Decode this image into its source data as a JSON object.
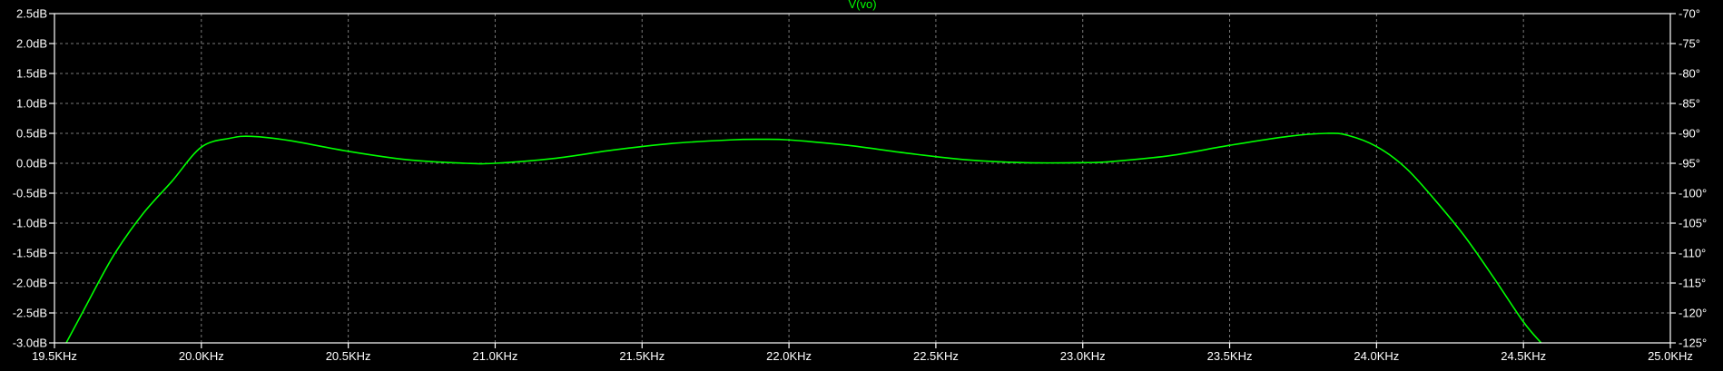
{
  "chart_data": {
    "type": "line",
    "title": "V(vo)",
    "xlabel": "",
    "ylabel": "",
    "x_range_hz": [
      19500,
      25000
    ],
    "y_range_db": [
      -3.0,
      2.5
    ],
    "y2_range_deg": [
      -125,
      -70
    ],
    "x_ticks": [
      {
        "value": 19500,
        "label": "19.5KHz"
      },
      {
        "value": 20000,
        "label": "20.0KHz"
      },
      {
        "value": 20500,
        "label": "20.5KHz"
      },
      {
        "value": 21000,
        "label": "21.0KHz"
      },
      {
        "value": 21500,
        "label": "21.5KHz"
      },
      {
        "value": 22000,
        "label": "22.0KHz"
      },
      {
        "value": 22500,
        "label": "22.5KHz"
      },
      {
        "value": 23000,
        "label": "23.0KHz"
      },
      {
        "value": 23500,
        "label": "23.5KHz"
      },
      {
        "value": 24000,
        "label": "24.0KHz"
      },
      {
        "value": 24500,
        "label": "24.5KHz"
      },
      {
        "value": 25000,
        "label": "25.0KHz"
      }
    ],
    "y_ticks": [
      {
        "value": 2.5,
        "label": "2.5dB"
      },
      {
        "value": 2.0,
        "label": "2.0dB"
      },
      {
        "value": 1.5,
        "label": "1.5dB"
      },
      {
        "value": 1.0,
        "label": "1.0dB"
      },
      {
        "value": 0.5,
        "label": "0.5dB"
      },
      {
        "value": 0.0,
        "label": "0.0dB"
      },
      {
        "value": -0.5,
        "label": "-0.5dB"
      },
      {
        "value": -1.0,
        "label": "-1.0dB"
      },
      {
        "value": -1.5,
        "label": "-1.5dB"
      },
      {
        "value": -2.0,
        "label": "-2.0dB"
      },
      {
        "value": -2.5,
        "label": "-2.5dB"
      },
      {
        "value": -3.0,
        "label": "-3.0dB"
      }
    ],
    "y2_ticks": [
      {
        "value": -70,
        "label": "-70°"
      },
      {
        "value": -75,
        "label": "-75°"
      },
      {
        "value": -80,
        "label": "-80°"
      },
      {
        "value": -85,
        "label": "-85°"
      },
      {
        "value": -90,
        "label": "-90°"
      },
      {
        "value": -95,
        "label": "-95°"
      },
      {
        "value": -100,
        "label": "-100°"
      },
      {
        "value": -105,
        "label": "-105°"
      },
      {
        "value": -110,
        "label": "-110°"
      },
      {
        "value": -115,
        "label": "-115°"
      },
      {
        "value": -120,
        "label": "-120°"
      },
      {
        "value": -125,
        "label": "-125°"
      }
    ],
    "grid": true,
    "grid_style": "dashed",
    "series": [
      {
        "name": "V(vo)",
        "color": "#00ff00",
        "x": [
          19540,
          19600,
          19700,
          19800,
          19900,
          20000,
          20100,
          20170,
          20300,
          20500,
          20700,
          20900,
          21000,
          21200,
          21400,
          21600,
          21800,
          21900,
          22000,
          22200,
          22400,
          22600,
          22800,
          23000,
          23100,
          23300,
          23500,
          23700,
          23830,
          23900,
          24000,
          24100,
          24200,
          24300,
          24400,
          24500,
          24560
        ],
        "y": [
          -3.0,
          -2.45,
          -1.55,
          -0.85,
          -0.3,
          0.27,
          0.42,
          0.45,
          0.38,
          0.2,
          0.06,
          0.0,
          0.0,
          0.08,
          0.22,
          0.33,
          0.39,
          0.4,
          0.39,
          0.3,
          0.17,
          0.06,
          0.01,
          0.01,
          0.03,
          0.13,
          0.3,
          0.45,
          0.5,
          0.47,
          0.28,
          -0.08,
          -0.62,
          -1.22,
          -1.92,
          -2.65,
          -3.0
        ]
      }
    ]
  },
  "colors": {
    "background": "#000000",
    "axis": "#ffffff",
    "grid": "#7a7a7a",
    "trace": "#00ff00",
    "title": "#00ff00"
  }
}
